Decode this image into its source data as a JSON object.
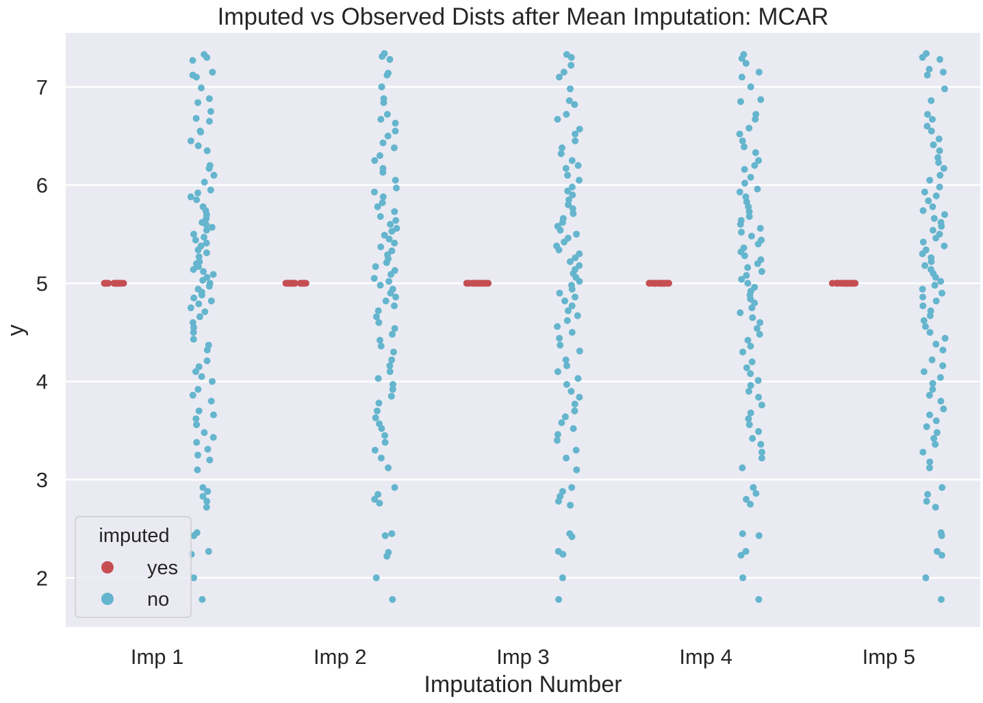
{
  "chart_data": {
    "type": "scatter",
    "title": "Imputed vs Observed Dists after Mean Imputation: MCAR",
    "xlabel": "Imputation Number",
    "ylabel": "y",
    "categories": [
      "Imp 1",
      "Imp 2",
      "Imp 3",
      "Imp 4",
      "Imp 5"
    ],
    "ylim": [
      1.5,
      7.55
    ],
    "yticks": [
      2,
      3,
      4,
      5,
      6,
      7
    ],
    "grid": true,
    "legend": {
      "title": "imputed",
      "placement": "lower-left",
      "entries": [
        "yes",
        "no"
      ]
    },
    "colors": {
      "yes": "#c44e52",
      "no": "#64b5cd",
      "background": "#eaeaf2",
      "grid": "#ffffff"
    },
    "series": [
      {
        "name": "yes",
        "values_per_category": [
          [
            5.0,
            5.0,
            5.0,
            5.0,
            5.0,
            5.0,
            5.0,
            5.0,
            5.0,
            5.0,
            5.0,
            5.0,
            5.0,
            5.0,
            5.0,
            5.0,
            5.0,
            5.0,
            5.0,
            5.0
          ],
          [
            5.0,
            5.0,
            5.0,
            5.0,
            5.0,
            5.0,
            5.0,
            5.0,
            5.0,
            5.0,
            5.0,
            5.0,
            5.0,
            5.0,
            5.0,
            5.0,
            5.0,
            5.0,
            5.0,
            5.0
          ],
          [
            5.0,
            5.0,
            5.0,
            5.0,
            5.0,
            5.0,
            5.0,
            5.0,
            5.0,
            5.0,
            5.0,
            5.0,
            5.0,
            5.0,
            5.0,
            5.0,
            5.0,
            5.0,
            5.0,
            5.0
          ],
          [
            5.0,
            5.0,
            5.0,
            5.0,
            5.0,
            5.0,
            5.0,
            5.0,
            5.0,
            5.0,
            5.0,
            5.0,
            5.0,
            5.0,
            5.0,
            5.0,
            5.0,
            5.0,
            5.0,
            5.0
          ],
          [
            5.0,
            5.0,
            5.0,
            5.0,
            5.0,
            5.0,
            5.0,
            5.0,
            5.0,
            5.0,
            5.0,
            5.0,
            5.0,
            5.0,
            5.0,
            5.0,
            5.0,
            5.0,
            5.0,
            5.0
          ]
        ]
      },
      {
        "name": "no",
        "values_per_category": [
          [
            7.33,
            7.3,
            7.27,
            7.15,
            7.12,
            7.1,
            6.99,
            6.88,
            6.84,
            6.75,
            6.68,
            6.65,
            6.55,
            6.54,
            6.45,
            6.4,
            6.35,
            6.2,
            6.17,
            6.1,
            6.03,
            5.95,
            5.92,
            5.88,
            5.85,
            5.78,
            5.74,
            5.7,
            5.66,
            5.62,
            5.6,
            5.57,
            5.54,
            5.5,
            5.47,
            5.44,
            5.41,
            5.38,
            5.34,
            5.31,
            5.27,
            5.22,
            5.2,
            5.17,
            5.14,
            5.12,
            5.09,
            5.06,
            5.03,
            5.0,
            4.97,
            4.94,
            4.91,
            4.88,
            4.85,
            4.82,
            4.79,
            4.75,
            4.71,
            4.66,
            4.6,
            4.55,
            4.5,
            4.43,
            4.37,
            4.32,
            4.21,
            4.15,
            4.1,
            4.05,
            4.0,
            3.92,
            3.86,
            3.8,
            3.7,
            3.66,
            3.62,
            3.56,
            3.48,
            3.43,
            3.38,
            3.31,
            3.25,
            3.2,
            3.1,
            2.92,
            2.88,
            2.83,
            2.78,
            2.72,
            2.46,
            2.43,
            2.27,
            2.24,
            2.0,
            1.78
          ],
          [
            7.34,
            7.31,
            7.28,
            7.14,
            7.12,
            7.0,
            6.88,
            6.84,
            6.72,
            6.67,
            6.63,
            6.55,
            6.5,
            6.43,
            6.38,
            6.3,
            6.25,
            6.17,
            6.13,
            6.05,
            5.97,
            5.93,
            5.88,
            5.82,
            5.78,
            5.73,
            5.68,
            5.64,
            5.6,
            5.56,
            5.53,
            5.49,
            5.45,
            5.41,
            5.37,
            5.33,
            5.29,
            5.25,
            5.21,
            5.17,
            5.13,
            5.09,
            5.05,
            5.02,
            4.98,
            4.94,
            4.9,
            4.86,
            4.82,
            4.77,
            4.72,
            4.66,
            4.6,
            4.54,
            4.48,
            4.42,
            4.36,
            4.3,
            4.22,
            4.16,
            4.1,
            4.03,
            3.97,
            3.92,
            3.85,
            3.78,
            3.7,
            3.63,
            3.57,
            3.52,
            3.45,
            3.38,
            3.3,
            3.22,
            3.12,
            2.92,
            2.85,
            2.8,
            2.76,
            2.45,
            2.43,
            2.26,
            2.22,
            2.0,
            1.78
          ],
          [
            7.33,
            7.3,
            7.22,
            7.15,
            7.1,
            6.98,
            6.86,
            6.82,
            6.72,
            6.67,
            6.57,
            6.52,
            6.45,
            6.38,
            6.32,
            6.25,
            6.2,
            6.17,
            6.1,
            6.05,
            5.98,
            5.94,
            5.9,
            5.85,
            5.8,
            5.76,
            5.71,
            5.66,
            5.62,
            5.58,
            5.54,
            5.5,
            5.46,
            5.42,
            5.38,
            5.34,
            5.3,
            5.26,
            5.22,
            5.18,
            5.14,
            5.1,
            5.06,
            5.02,
            4.98,
            4.94,
            4.9,
            4.86,
            4.82,
            4.77,
            4.72,
            4.67,
            4.62,
            4.56,
            4.5,
            4.44,
            4.37,
            4.31,
            4.22,
            4.16,
            4.1,
            4.03,
            3.97,
            3.9,
            3.84,
            3.77,
            3.7,
            3.64,
            3.58,
            3.52,
            3.46,
            3.4,
            3.3,
            3.22,
            3.1,
            2.92,
            2.88,
            2.83,
            2.78,
            2.74,
            2.45,
            2.42,
            2.27,
            2.24,
            2.0,
            1.78
          ],
          [
            7.33,
            7.29,
            7.24,
            7.15,
            7.1,
            7.0,
            6.87,
            6.85,
            6.72,
            6.67,
            6.58,
            6.52,
            6.45,
            6.39,
            6.33,
            6.25,
            6.2,
            6.16,
            6.08,
            6.02,
            5.96,
            5.93,
            5.88,
            5.83,
            5.78,
            5.73,
            5.68,
            5.64,
            5.6,
            5.56,
            5.52,
            5.48,
            5.44,
            5.4,
            5.36,
            5.32,
            5.28,
            5.24,
            5.2,
            5.16,
            5.12,
            5.08,
            5.04,
            5.0,
            4.96,
            4.92,
            4.88,
            4.84,
            4.8,
            4.75,
            4.7,
            4.65,
            4.6,
            4.54,
            4.48,
            4.42,
            4.36,
            4.3,
            4.2,
            4.14,
            4.08,
            4.01,
            3.96,
            3.9,
            3.84,
            3.76,
            3.68,
            3.62,
            3.56,
            3.49,
            3.42,
            3.36,
            3.28,
            3.22,
            3.12,
            2.92,
            2.86,
            2.8,
            2.75,
            2.45,
            2.43,
            2.27,
            2.23,
            2.0,
            1.78
          ],
          [
            7.34,
            7.3,
            7.28,
            7.18,
            7.15,
            7.12,
            6.98,
            6.86,
            6.72,
            6.67,
            6.6,
            6.55,
            6.47,
            6.41,
            6.35,
            6.28,
            6.23,
            6.17,
            6.1,
            6.05,
            5.98,
            5.93,
            5.89,
            5.84,
            5.78,
            5.74,
            5.7,
            5.66,
            5.62,
            5.58,
            5.54,
            5.5,
            5.46,
            5.42,
            5.38,
            5.34,
            5.3,
            5.26,
            5.22,
            5.18,
            5.14,
            5.1,
            5.06,
            5.02,
            4.98,
            4.94,
            4.9,
            4.86,
            4.82,
            4.77,
            4.72,
            4.67,
            4.62,
            4.56,
            4.5,
            4.44,
            4.38,
            4.32,
            4.22,
            4.16,
            4.1,
            4.04,
            3.98,
            3.92,
            3.86,
            3.8,
            3.72,
            3.66,
            3.6,
            3.54,
            3.48,
            3.42,
            3.36,
            3.28,
            3.18,
            3.12,
            2.92,
            2.85,
            2.78,
            2.72,
            2.46,
            2.43,
            2.27,
            2.23,
            2.0,
            1.78
          ]
        ]
      }
    ]
  }
}
